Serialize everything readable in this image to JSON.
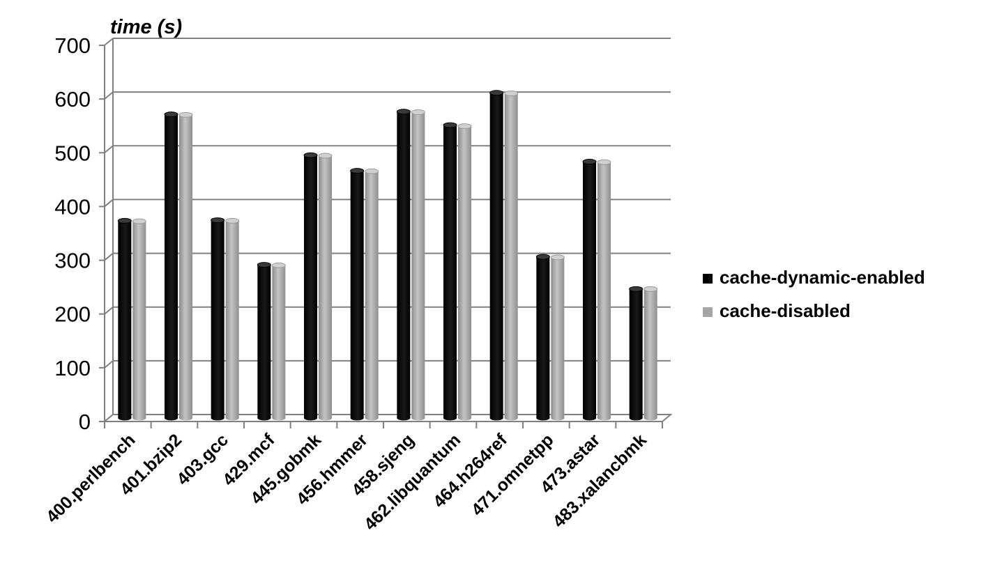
{
  "chart_data": {
    "type": "bar",
    "ylabel": "time (s)",
    "xlabel": "",
    "ylim": [
      0,
      700
    ],
    "yticks": [
      0,
      100,
      200,
      300,
      400,
      500,
      600,
      700
    ],
    "grid": true,
    "legend_position": "right",
    "categories": [
      "400.perlbench",
      "401.bzip2",
      "403.gcc",
      "429.mcf",
      "445.gobmk",
      "456.hmmer",
      "458.sjeng",
      "462.libquantum",
      "464.h264ref",
      "471.omnetpp",
      "473.astar",
      "483.xalancbmk"
    ],
    "series": [
      {
        "name": "cache-dynamic-enabled",
        "color": "#000000",
        "values": [
          367,
          565,
          368,
          285,
          489,
          460,
          570,
          545,
          605,
          300,
          477,
          240
        ]
      },
      {
        "name": "cache-disabled",
        "color": "#a6a6a6",
        "values": [
          366,
          564,
          367,
          284,
          488,
          459,
          569,
          543,
          604,
          299,
          476,
          240
        ]
      }
    ]
  }
}
